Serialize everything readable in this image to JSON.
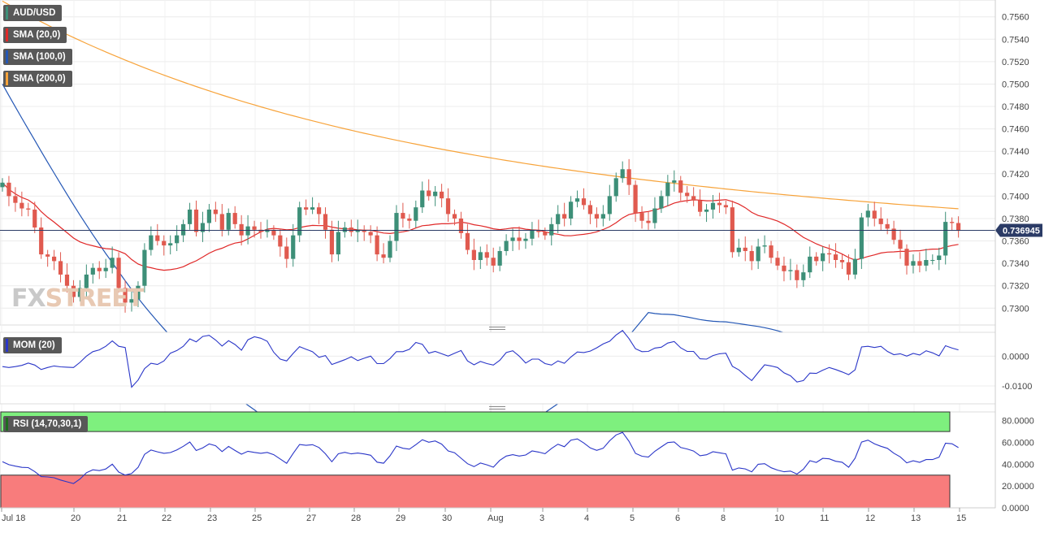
{
  "instrument": "AUD/USD",
  "price_label": "0.736945",
  "colors": {
    "bull": "#3d8f78",
    "bear": "#e05a4f",
    "sma20": "#e02828",
    "sma100": "#2457b5",
    "sma200": "#f7a33a",
    "price_line": "#2b3b66",
    "mom": "#2a36c8",
    "rsi": "#2a36c8",
    "rsi_over": "#7ef07e",
    "rsi_under": "#f87c7c"
  },
  "legend": {
    "instrument": "AUD/USD",
    "sma20": "SMA (20,0)",
    "sma100": "SMA (100,0)",
    "sma200": "SMA (200,0)",
    "mom": "MOM (20)",
    "rsi": "RSI (14,70,30,1)"
  },
  "logo": {
    "a": "FX",
    "b": "STREET"
  },
  "x_axis": {
    "labels": [
      "Jul 18",
      "20",
      "21",
      "22",
      "23",
      "25",
      "27",
      "28",
      "29",
      "30",
      "Aug",
      "3",
      "4",
      "5",
      "6",
      "8",
      "10",
      "11",
      "12",
      "13",
      "15"
    ]
  },
  "chart_data": [
    {
      "type": "candlestick",
      "title": "AUD/USD",
      "ylim": [
        0.7285,
        0.7575
      ],
      "y_ticks": [
        "0.7300",
        "0.7320",
        "0.7340",
        "0.7360",
        "0.7380",
        "0.7400",
        "0.7420",
        "0.7440",
        "0.7460",
        "0.7480",
        "0.7500",
        "0.7520",
        "0.7540",
        "0.7560"
      ],
      "last_price": 0.736945,
      "series_names": [
        "SMA (20,0)",
        "SMA (100,0)",
        "SMA (200,0)"
      ],
      "close": [
        0.7412,
        0.74,
        0.7394,
        0.7389,
        0.7388,
        0.7372,
        0.7348,
        0.7346,
        0.7342,
        0.733,
        0.732,
        0.731,
        0.7318,
        0.733,
        0.7336,
        0.7333,
        0.7336,
        0.7345,
        0.7318,
        0.7305,
        0.7308,
        0.732,
        0.7352,
        0.7365,
        0.736,
        0.7356,
        0.7358,
        0.7365,
        0.7375,
        0.7388,
        0.7368,
        0.7376,
        0.7388,
        0.7384,
        0.737,
        0.7385,
        0.7375,
        0.7365,
        0.7373,
        0.737,
        0.7368,
        0.737,
        0.7365,
        0.7355,
        0.7344,
        0.7365,
        0.739,
        0.7388,
        0.739,
        0.7384,
        0.737,
        0.7348,
        0.7368,
        0.7372,
        0.7368,
        0.737,
        0.7368,
        0.7365,
        0.7348,
        0.7345,
        0.736,
        0.7385,
        0.738,
        0.7378,
        0.739,
        0.7405,
        0.74,
        0.7404,
        0.7398,
        0.7384,
        0.738,
        0.7367,
        0.7352,
        0.7343,
        0.735,
        0.7345,
        0.7338,
        0.7351,
        0.736,
        0.7363,
        0.736,
        0.7362,
        0.737,
        0.7368,
        0.7365,
        0.7375,
        0.7384,
        0.738,
        0.7395,
        0.7398,
        0.7392,
        0.7384,
        0.738,
        0.7384,
        0.74,
        0.7416,
        0.7424,
        0.741,
        0.7385,
        0.7378,
        0.7376,
        0.7389,
        0.74,
        0.7412,
        0.7414,
        0.7403,
        0.74,
        0.7396,
        0.7386,
        0.7388,
        0.7394,
        0.7392,
        0.739,
        0.735,
        0.7354,
        0.7351,
        0.7342,
        0.7355,
        0.7356,
        0.7345,
        0.7338,
        0.7333,
        0.7334,
        0.7325,
        0.7332,
        0.7346,
        0.7342,
        0.7349,
        0.7348,
        0.7343,
        0.7341,
        0.733,
        0.7344,
        0.7381,
        0.7387,
        0.738,
        0.7375,
        0.7371,
        0.7361,
        0.7353,
        0.7338,
        0.7342,
        0.7338,
        0.7343,
        0.7343,
        0.7347,
        0.7377,
        0.7376,
        0.7369
      ]
    },
    {
      "type": "line",
      "title": "MOM (20)",
      "ylim": [
        -0.016,
        0.008
      ],
      "y_ticks": [
        "0.0000",
        "-0.0100"
      ]
    },
    {
      "type": "line",
      "title": "RSI (14,70,30,1)",
      "ylim": [
        0,
        88
      ],
      "y_ticks": [
        "80.0000",
        "60.0000",
        "40.0000",
        "20.0000",
        "0.0000"
      ],
      "overbought": 70,
      "oversold": 30
    }
  ]
}
